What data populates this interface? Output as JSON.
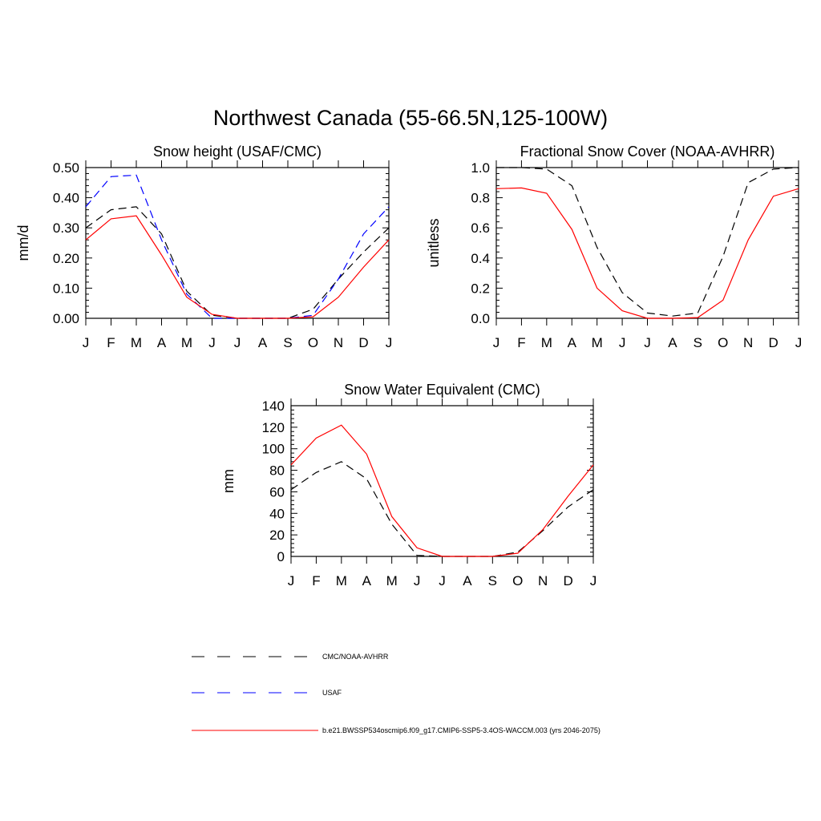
{
  "figure_title": "Northwest Canada (55-66.5N,125-100W)",
  "series_styles": {
    "obs": {
      "color": "#000000",
      "dash": "dashed"
    },
    "usaf": {
      "color": "#0000ff",
      "dash": "dashed"
    },
    "model": {
      "color": "#ff0000",
      "dash": "solid"
    }
  },
  "legend": [
    {
      "label": "CMC/NOAA-AVHRR",
      "style": "obs"
    },
    {
      "label": "USAF",
      "style": "usaf"
    },
    {
      "label": "b.e21.BWSSP534oscmip6.f09_g17.CMIP6-SSP5-3.4OS-WACCM.003 (yrs 2046-2075)",
      "style": "model"
    }
  ],
  "chart_data": [
    {
      "type": "line",
      "title": "Snow height (USAF/CMC)",
      "xlabel": "",
      "ylabel": "mm/d",
      "categories": [
        "J",
        "F",
        "M",
        "A",
        "M",
        "J",
        "J",
        "A",
        "S",
        "O",
        "N",
        "D",
        "J"
      ],
      "ylim": [
        0,
        0.5
      ],
      "yticks": [
        "0.00",
        "0.10",
        "0.20",
        "0.30",
        "0.40",
        "0.50"
      ],
      "series": [
        {
          "style": "obs",
          "values": [
            0.3,
            0.36,
            0.37,
            0.28,
            0.09,
            0.01,
            0.0,
            0.0,
            0.0,
            0.03,
            0.13,
            0.22,
            0.3
          ]
        },
        {
          "style": "usaf",
          "values": [
            0.37,
            0.47,
            0.475,
            0.26,
            0.08,
            0.0,
            0.0,
            0.0,
            0.0,
            0.01,
            0.13,
            0.28,
            0.37
          ]
        },
        {
          "style": "model",
          "values": [
            0.26,
            0.33,
            0.34,
            0.21,
            0.07,
            0.013,
            0.0,
            0.0,
            0.0,
            0.005,
            0.07,
            0.17,
            0.26
          ]
        }
      ]
    },
    {
      "type": "line",
      "title": "Fractional Snow Cover (NOAA-AVHRR)",
      "xlabel": "",
      "ylabel": "unitless",
      "categories": [
        "J",
        "F",
        "M",
        "A",
        "M",
        "J",
        "J",
        "A",
        "S",
        "O",
        "N",
        "D",
        "J"
      ],
      "ylim": [
        0,
        1.0
      ],
      "yticks": [
        "0.0",
        "0.2",
        "0.4",
        "0.6",
        "0.8",
        "1.0"
      ],
      "series": [
        {
          "style": "obs",
          "values": [
            1.0,
            1.0,
            0.99,
            0.88,
            0.47,
            0.17,
            0.035,
            0.015,
            0.035,
            0.41,
            0.9,
            0.99,
            1.0
          ]
        },
        {
          "style": "model",
          "values": [
            0.86,
            0.865,
            0.83,
            0.59,
            0.2,
            0.05,
            0.0,
            0.0,
            0.005,
            0.12,
            0.52,
            0.81,
            0.86
          ]
        }
      ]
    },
    {
      "type": "line",
      "title": "Snow Water Equivalent (CMC)",
      "xlabel": "",
      "ylabel": "mm",
      "categories": [
        "J",
        "F",
        "M",
        "A",
        "M",
        "J",
        "J",
        "A",
        "S",
        "O",
        "N",
        "D",
        "J"
      ],
      "ylim": [
        0,
        140
      ],
      "yticks": [
        "0",
        "20",
        "40",
        "60",
        "80",
        "100",
        "120",
        "140"
      ],
      "series": [
        {
          "style": "obs",
          "values": [
            62,
            78,
            88,
            72,
            30,
            1,
            0,
            0,
            0,
            4,
            24,
            46,
            62
          ]
        },
        {
          "style": "model",
          "values": [
            85,
            110,
            122,
            95,
            37,
            8,
            0,
            0,
            0,
            3,
            25,
            56,
            85
          ]
        }
      ]
    }
  ]
}
